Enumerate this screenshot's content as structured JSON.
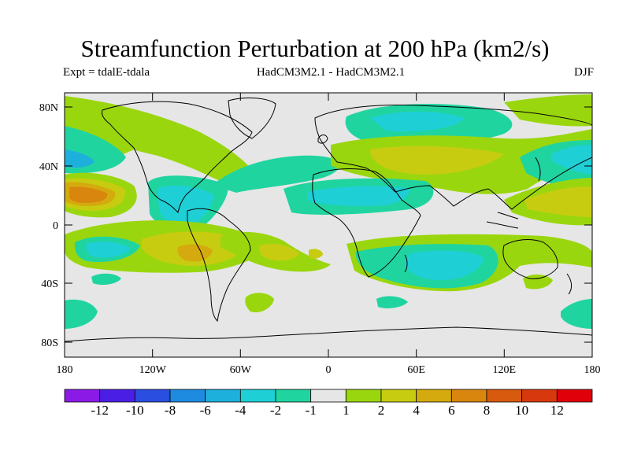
{
  "title": "Streamfunction Perturbation at 200 hPa (km2/s)",
  "expt_label": "Expt = tdalE-tdala",
  "models_label": "HadCM3M2.1 - HadCM3M2.1",
  "season_label": "DJF",
  "lat_labels": [
    "80N",
    "40N",
    "0",
    "40S",
    "80S"
  ],
  "lon_labels": [
    "180",
    "120W",
    "60W",
    "0",
    "60E",
    "120E",
    "180"
  ],
  "colorbar": {
    "colors": [
      "#8b1ae6",
      "#4b1ee6",
      "#2a4ee0",
      "#1e8ae0",
      "#1eb0dc",
      "#1ecfd6",
      "#20d4a0",
      "#e6e6e6",
      "#9ad60e",
      "#c8cc10",
      "#d4aa0e",
      "#d8860e",
      "#d85a0e",
      "#d8380e",
      "#e0000a"
    ],
    "labels": [
      "-12",
      "-10",
      "-8",
      "-6",
      "-4",
      "-2",
      "-1",
      "1",
      "2",
      "4",
      "6",
      "8",
      "10",
      "12"
    ]
  },
  "fill_colors": {
    "background": "#e6e6e6",
    "green": "#9ad60e",
    "yellow": "#c8cc10",
    "orange": "#d4aa0e",
    "dorange": "#d8860e",
    "teal": "#20d4a0",
    "cyan": "#1ecfd6",
    "blue": "#1eb0dc"
  }
}
